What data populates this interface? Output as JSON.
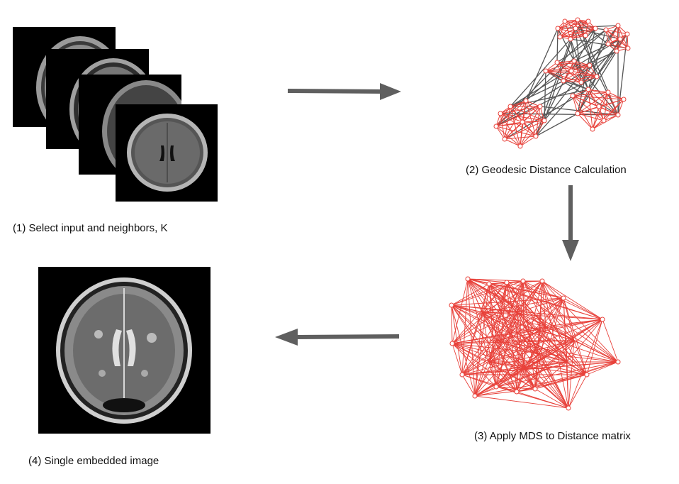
{
  "steps": [
    {
      "caption": "(1) Select input and neighbors, K"
    },
    {
      "caption": "(2) Geodesic Distance Calculation"
    },
    {
      "caption": "(3) Apply MDS to Distance matrix"
    },
    {
      "caption": "(4) Single embedded image"
    }
  ],
  "colors": {
    "graph_red": "#e8413a",
    "graph_gray": "#555555",
    "arrow": "#5f5f5f",
    "brain_bg": "#000000"
  }
}
